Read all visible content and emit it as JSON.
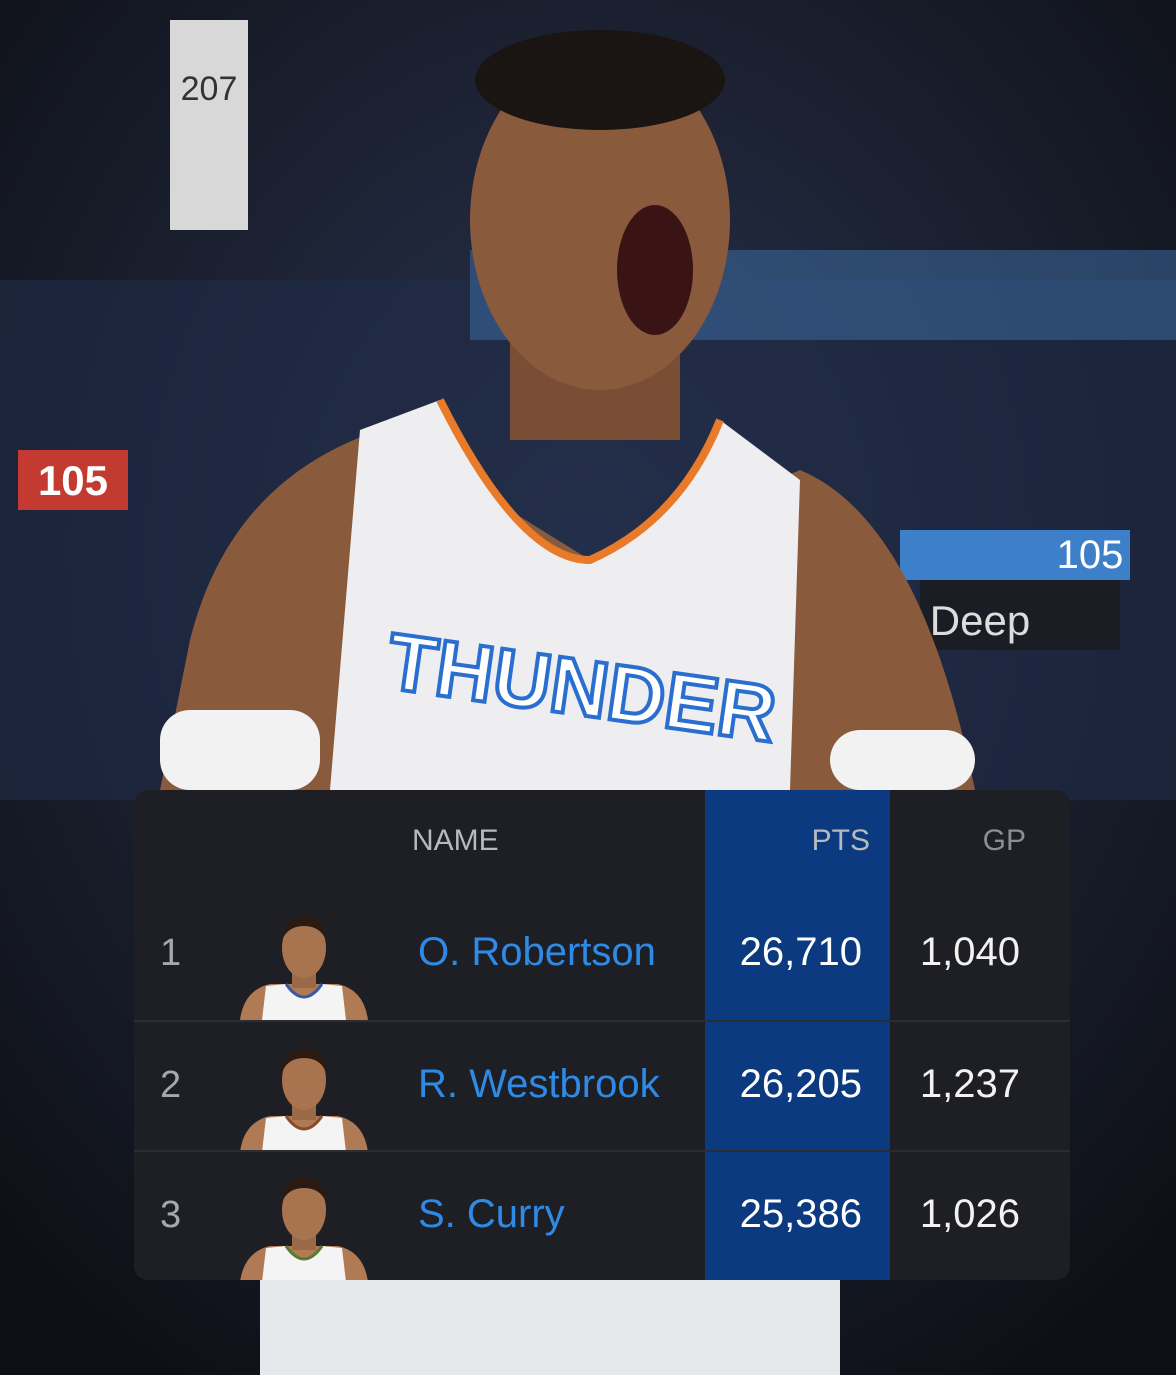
{
  "background_text": {
    "sign_left": "105",
    "sign_right": "105",
    "banner": "Deep",
    "pillar": "207",
    "jersey": "THUNDER"
  },
  "colors": {
    "table_bg": "#1e1f24",
    "pts_highlight": "#0b3a80",
    "name_link": "#2f8ae6"
  },
  "table": {
    "headers": {
      "name": "NAME",
      "pts": "PTS",
      "gp": "GP"
    },
    "rows": [
      {
        "rank": "1",
        "name": "O. Robertson",
        "pts": "26,710",
        "gp": "1,040",
        "jersey": "#3a56a8"
      },
      {
        "rank": "2",
        "name": "R. Westbrook",
        "pts": "26,205",
        "gp": "1,237",
        "jersey": "#8a4a2a"
      },
      {
        "rank": "3",
        "name": "S. Curry",
        "pts": "25,386",
        "gp": "1,026",
        "jersey": "#5a7a30"
      }
    ]
  }
}
